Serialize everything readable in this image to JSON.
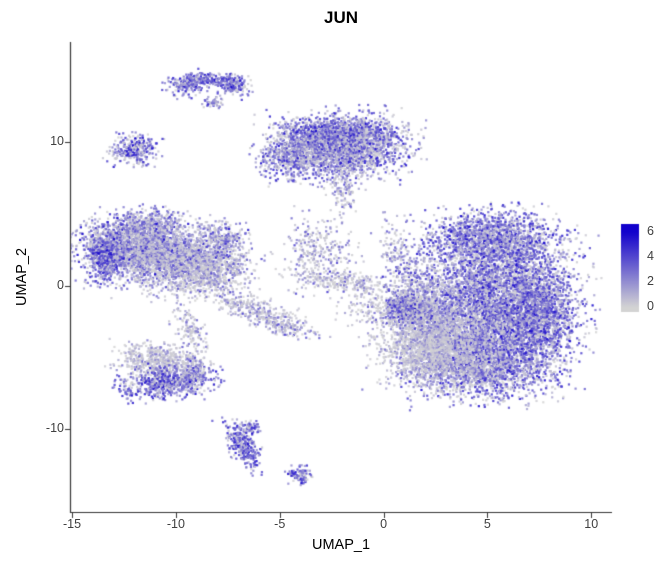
{
  "plot": {
    "background": "#FFFFFF",
    "axis_color": "#333333",
    "tick_label_color": "#404040",
    "text_color": "#000000"
  },
  "chart_data": {
    "type": "scatter",
    "title": "JUN",
    "xlabel": "UMAP_1",
    "ylabel": "UMAP_2",
    "xlim": [
      -15.1,
      11.0
    ],
    "ylim": [
      -15.8,
      17.0
    ],
    "x_ticks": [
      -15,
      -10,
      -5,
      0,
      5,
      10
    ],
    "y_ticks": [
      -10,
      0,
      10
    ],
    "grid": false,
    "legend": {
      "position": "right",
      "title": "",
      "ticks": [
        6,
        4,
        2,
        0
      ],
      "min": 0,
      "max": 6,
      "bar_value_top": 6.6,
      "bar_value_bottom": -0.4,
      "low_color": "#D3D3D3",
      "high_color": "#1100CC"
    },
    "point": {
      "radius": 1.1,
      "alpha": 0.85
    },
    "clusters": [
      {
        "name": "top-arc-left",
        "cx": -9.4,
        "cy": 14.0,
        "sx": 0.5,
        "sy": 0.35,
        "rot": 25,
        "n": 160,
        "mean": 3.1,
        "sd": 1.5,
        "p0": 0.18
      },
      {
        "name": "top-arc-mid",
        "cx": -8.3,
        "cy": 14.35,
        "sx": 0.8,
        "sy": 0.22,
        "rot": 0,
        "n": 220,
        "mean": 3.0,
        "sd": 1.5,
        "p0": 0.18
      },
      {
        "name": "top-arc-right",
        "cx": -7.2,
        "cy": 13.9,
        "sx": 0.45,
        "sy": 0.3,
        "rot": -20,
        "n": 140,
        "mean": 3.3,
        "sd": 1.5,
        "p0": 0.15
      },
      {
        "name": "top-arc-dot",
        "cx": -8.25,
        "cy": 12.75,
        "sx": 0.22,
        "sy": 0.18,
        "rot": 0,
        "n": 45,
        "mean": 2.6,
        "sd": 1.4,
        "p0": 0.25
      },
      {
        "name": "left-small",
        "cx": -12.0,
        "cy": 9.5,
        "sx": 0.55,
        "sy": 0.5,
        "rot": 0,
        "n": 300,
        "mean": 3.0,
        "sd": 1.8,
        "p0": 0.25
      },
      {
        "name": "top-mid-main",
        "cx": -2.2,
        "cy": 9.7,
        "sx": 1.55,
        "sy": 1.05,
        "rot": 0,
        "n": 2600,
        "mean": 2.6,
        "sd": 1.6,
        "p0": 0.25
      },
      {
        "name": "top-mid-left",
        "cx": -4.4,
        "cy": 9.0,
        "sx": 0.7,
        "sy": 0.75,
        "rot": 0,
        "n": 420,
        "mean": 2.5,
        "sd": 1.6,
        "p0": 0.25
      },
      {
        "name": "top-mid-topedge",
        "cx": -2.0,
        "cy": 10.7,
        "sx": 1.25,
        "sy": 0.4,
        "rot": 0,
        "n": 500,
        "mean": 3.1,
        "sd": 1.4,
        "p0": 0.18
      },
      {
        "name": "top-mid-tail",
        "cx": -1.9,
        "cy": 6.6,
        "sx": 0.4,
        "sy": 0.9,
        "rot": 0,
        "n": 130,
        "mean": 2.0,
        "sd": 1.3,
        "p0": 0.35
      },
      {
        "name": "left-main-a",
        "cx": -12.4,
        "cy": 2.8,
        "sx": 1.1,
        "sy": 1.0,
        "rot": 0,
        "n": 1500,
        "mean": 2.6,
        "sd": 1.6,
        "p0": 0.25
      },
      {
        "name": "left-main-b",
        "cx": -10.3,
        "cy": 2.0,
        "sx": 1.3,
        "sy": 1.15,
        "rot": 0,
        "n": 1700,
        "mean": 2.0,
        "sd": 1.5,
        "p0": 0.35
      },
      {
        "name": "left-main-c",
        "cx": -8.4,
        "cy": 1.1,
        "sx": 1.0,
        "sy": 0.9,
        "rot": 0,
        "n": 800,
        "mean": 1.7,
        "sd": 1.3,
        "p0": 0.4
      },
      {
        "name": "left-main-edge",
        "cx": -13.4,
        "cy": 1.9,
        "sx": 0.45,
        "sy": 0.8,
        "rot": 0,
        "n": 380,
        "mean": 3.1,
        "sd": 1.5,
        "p0": 0.15
      },
      {
        "name": "left-main-top",
        "cx": -11.4,
        "cy": 4.3,
        "sx": 0.8,
        "sy": 0.5,
        "rot": 0,
        "n": 320,
        "mean": 2.4,
        "sd": 1.5,
        "p0": 0.3
      },
      {
        "name": "left-main-spur",
        "cx": -7.7,
        "cy": 3.3,
        "sx": 0.6,
        "sy": 0.55,
        "rot": 0,
        "n": 260,
        "mean": 2.3,
        "sd": 1.5,
        "p0": 0.3
      },
      {
        "name": "strand-left-down",
        "cx": -9.3,
        "cy": -3.0,
        "sx": 0.35,
        "sy": 1.0,
        "rot": 15,
        "n": 130,
        "mean": 1.6,
        "sd": 1.2,
        "p0": 0.45
      },
      {
        "name": "strand-diag",
        "cx": -6.4,
        "cy": -1.6,
        "sx": 1.2,
        "sy": 0.45,
        "rot": -25,
        "n": 260,
        "mean": 1.5,
        "sd": 1.2,
        "p0": 0.45
      },
      {
        "name": "strand-diag2",
        "cx": -4.7,
        "cy": -2.9,
        "sx": 0.8,
        "sy": 0.35,
        "rot": -25,
        "n": 150,
        "mean": 1.7,
        "sd": 1.3,
        "p0": 0.4
      },
      {
        "name": "mid-triangle",
        "cx": -3.2,
        "cy": 2.2,
        "sx": 0.85,
        "sy": 1.2,
        "rot": 0,
        "n": 300,
        "mean": 1.6,
        "sd": 1.3,
        "p0": 0.45
      },
      {
        "name": "mid-strand-h",
        "cx": -2.0,
        "cy": 0.3,
        "sx": 1.2,
        "sy": 0.35,
        "rot": -10,
        "n": 220,
        "mean": 1.5,
        "sd": 1.2,
        "p0": 0.45
      },
      {
        "name": "mid-sparse",
        "cx": -0.5,
        "cy": -1.6,
        "sx": 0.8,
        "sy": 0.8,
        "rot": 0,
        "n": 160,
        "mean": 1.4,
        "sd": 1.2,
        "p0": 0.5
      },
      {
        "name": "mid-strand-v",
        "cx": 0.7,
        "cy": 2.1,
        "sx": 0.4,
        "sy": 1.3,
        "rot": 10,
        "n": 150,
        "mean": 1.9,
        "sd": 1.4,
        "p0": 0.35
      },
      {
        "name": "mid-dense",
        "cx": 1.1,
        "cy": -1.6,
        "sx": 0.5,
        "sy": 0.5,
        "rot": 0,
        "n": 480,
        "mean": 3.3,
        "sd": 1.4,
        "p0": 0.12
      },
      {
        "name": "right-main",
        "cx": 5.2,
        "cy": -1.2,
        "sx": 1.9,
        "sy": 2.5,
        "rot": 0,
        "n": 4800,
        "mean": 2.7,
        "sd": 1.6,
        "p0": 0.25
      },
      {
        "name": "right-top",
        "cx": 5.2,
        "cy": 3.3,
        "sx": 1.5,
        "sy": 0.9,
        "rot": 0,
        "n": 1300,
        "mean": 2.9,
        "sd": 1.5,
        "p0": 0.2
      },
      {
        "name": "right-east",
        "cx": 7.4,
        "cy": -2.0,
        "sx": 0.85,
        "sy": 1.7,
        "rot": 0,
        "n": 1400,
        "mean": 3.0,
        "sd": 1.5,
        "p0": 0.18
      },
      {
        "name": "right-bottom",
        "cx": 4.6,
        "cy": -5.4,
        "sx": 1.6,
        "sy": 1.2,
        "rot": 0,
        "n": 1900,
        "mean": 2.8,
        "sd": 1.5,
        "p0": 0.22
      },
      {
        "name": "right-gray",
        "cx": 2.4,
        "cy": -4.3,
        "sx": 1.3,
        "sy": 1.3,
        "rot": 0,
        "n": 1700,
        "mean": 1.2,
        "sd": 1.0,
        "p0": 0.5
      },
      {
        "name": "right-west",
        "cx": 1.9,
        "cy": -1.4,
        "sx": 0.8,
        "sy": 1.2,
        "rot": 0,
        "n": 650,
        "mean": 2.0,
        "sd": 1.4,
        "p0": 0.35
      },
      {
        "name": "lower-left-top",
        "cx": -10.8,
        "cy": -5.3,
        "sx": 1.0,
        "sy": 0.6,
        "rot": -10,
        "n": 520,
        "mean": 1.2,
        "sd": 1.0,
        "p0": 0.5
      },
      {
        "name": "lower-left-bottom",
        "cx": -10.5,
        "cy": -6.8,
        "sx": 1.05,
        "sy": 0.55,
        "rot": 5,
        "n": 620,
        "mean": 3.2,
        "sd": 1.5,
        "p0": 0.15
      },
      {
        "name": "lower-left-tip",
        "cx": -9.1,
        "cy": -6.1,
        "sx": 0.4,
        "sy": 0.5,
        "rot": 0,
        "n": 150,
        "mean": 2.4,
        "sd": 1.4,
        "p0": 0.3
      },
      {
        "name": "bottom-small",
        "cx": -6.8,
        "cy": -11.1,
        "sx": 0.33,
        "sy": 0.85,
        "rot": 18,
        "n": 300,
        "mean": 3.3,
        "sd": 1.4,
        "p0": 0.15
      },
      {
        "name": "bottom-small-tip",
        "cx": -6.4,
        "cy": -9.9,
        "sx": 0.22,
        "sy": 0.22,
        "rot": 0,
        "n": 60,
        "mean": 3.0,
        "sd": 1.4,
        "p0": 0.2
      },
      {
        "name": "bottom-tiny",
        "cx": -4.1,
        "cy": -13.2,
        "sx": 0.3,
        "sy": 0.28,
        "rot": 0,
        "n": 90,
        "mean": 3.0,
        "sd": 1.5,
        "p0": 0.2
      }
    ]
  }
}
